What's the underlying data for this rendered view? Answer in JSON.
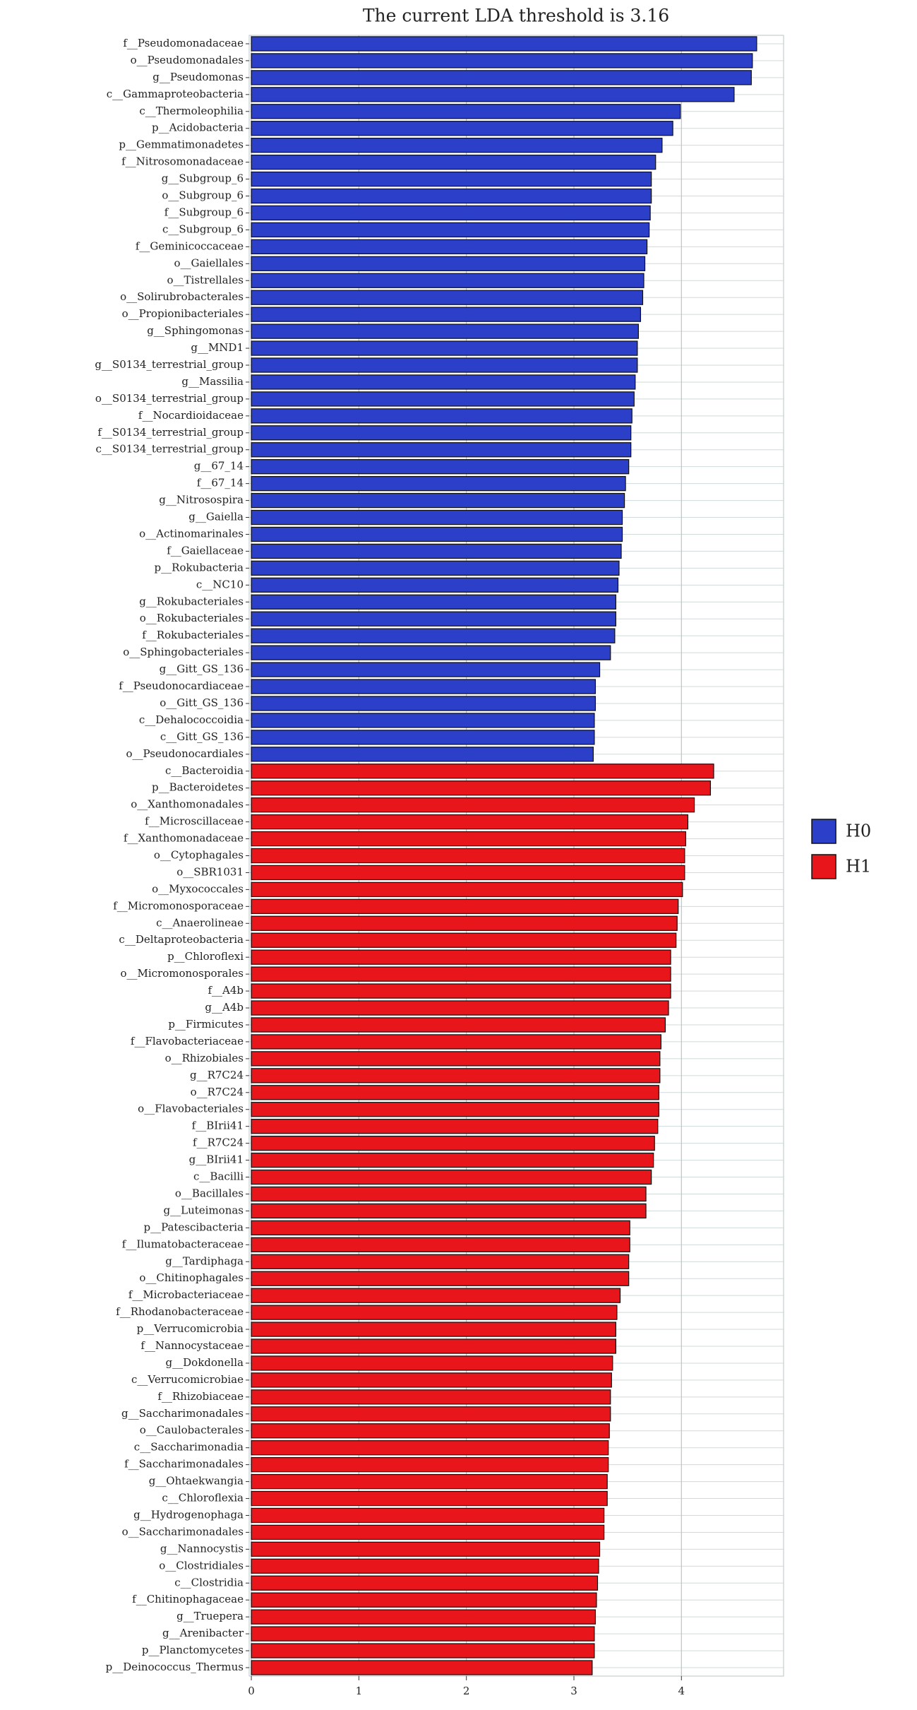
{
  "chart_data": {
    "type": "barh",
    "title": "The current LDA threshold is 3.16",
    "categories": [
      "f__Pseudomonadaceae",
      "o__Pseudomonadales",
      "g__Pseudomonas",
      "c__Gammaproteobacteria",
      "c__Thermoleophilia",
      "p__Acidobacteria",
      "p__Gemmatimonadetes",
      "f__Nitrosomonadaceae",
      "g__Subgroup_6",
      "o__Subgroup_6",
      "f__Subgroup_6",
      "c__Subgroup_6",
      "f__Geminicoccaceae",
      "o__Gaiellales",
      "o__Tistrellales",
      "o__Solirubrobacterales",
      "o__Propionibacteriales",
      "g__Sphingomonas",
      "g__MND1",
      "g__S0134_terrestrial_group",
      "g__Massilia",
      "o__S0134_terrestrial_group",
      "f__Nocardioidaceae",
      "f__S0134_terrestrial_group",
      "c__S0134_terrestrial_group",
      "g__67_14",
      "f__67_14",
      "g__Nitrosospira",
      "g__Gaiella",
      "o__Actinomarinales",
      "f__Gaiellaceae",
      "p__Rokubacteria",
      "c__NC10",
      "g__Rokubacteriales",
      "o__Rokubacteriales",
      "f__Rokubacteriales",
      "o__Sphingobacteriales",
      "g__Gitt_GS_136",
      "f__Pseudonocardiaceae",
      "o__Gitt_GS_136",
      "c__Dehalococcoidia",
      "c__Gitt_GS_136",
      "o__Pseudonocardiales",
      "c__Bacteroidia",
      "p__Bacteroidetes",
      "o__Xanthomonadales",
      "f__Microscillaceae",
      "f__Xanthomonadaceae",
      "o__Cytophagales",
      "o__SBR1031",
      "o__Myxococcales",
      "f__Micromonosporaceae",
      "c__Anaerolineae",
      "c__Deltaproteobacteria",
      "p__Chloroflexi",
      "o__Micromonosporales",
      "f__A4b",
      "g__A4b",
      "p__Firmicutes",
      "f__Flavobacteriaceae",
      "o__Rhizobiales",
      "g__R7C24",
      "o__R7C24",
      "o__Flavobacteriales",
      "f__BIrii41",
      "f__R7C24",
      "g__BIrii41",
      "c__Bacilli",
      "o__Bacillales",
      "g__Luteimonas",
      "p__Patescibacteria",
      "f__Ilumatobacteraceae",
      "g__Tardiphaga",
      "o__Chitinophagales",
      "f__Microbacteriaceae",
      "f__Rhodanobacteraceae",
      "p__Verrucomicrobia",
      "f__Nannocystaceae",
      "g__Dokdonella",
      "c__Verrucomicrobiae",
      "f__Rhizobiaceae",
      "g__Saccharimonadales",
      "o__Caulobacterales",
      "c__Saccharimonadia",
      "f__Saccharimonadales",
      "g__Ohtaekwangia",
      "c__Chloroflexia",
      "g__Hydrogenophaga",
      "o__Saccharimonadales",
      "g__Nannocystis",
      "o__Clostridiales",
      "c__Clostridia",
      "f__Chitinophagaceae",
      "g__Truepera",
      "g__Arenibacter",
      "p__Planctomycetes",
      "p__Deinococcus_Thermus"
    ],
    "series": [
      {
        "name": "H0",
        "color": "#2b3fc9",
        "values": [
          4.7,
          4.66,
          4.65,
          4.49,
          3.99,
          3.92,
          3.82,
          3.76,
          3.72,
          3.72,
          3.71,
          3.7,
          3.68,
          3.66,
          3.65,
          3.64,
          3.62,
          3.6,
          3.59,
          3.59,
          3.57,
          3.56,
          3.54,
          3.53,
          3.53,
          3.51,
          3.48,
          3.47,
          3.45,
          3.45,
          3.44,
          3.42,
          3.41,
          3.39,
          3.39,
          3.38,
          3.34,
          3.24,
          3.2,
          3.2,
          3.19,
          3.19,
          3.18,
          null,
          null,
          null,
          null,
          null,
          null,
          null,
          null,
          null,
          null,
          null,
          null,
          null,
          null,
          null,
          null,
          null,
          null,
          null,
          null,
          null,
          null,
          null,
          null,
          null,
          null,
          null,
          null,
          null,
          null,
          null,
          null,
          null,
          null,
          null,
          null,
          null,
          null,
          null,
          null,
          null,
          null,
          null,
          null,
          null,
          null,
          null,
          null,
          null,
          null,
          null,
          null,
          null,
          null
        ]
      },
      {
        "name": "H1",
        "color": "#e8161b",
        "values": [
          null,
          null,
          null,
          null,
          null,
          null,
          null,
          null,
          null,
          null,
          null,
          null,
          null,
          null,
          null,
          null,
          null,
          null,
          null,
          null,
          null,
          null,
          null,
          null,
          null,
          null,
          null,
          null,
          null,
          null,
          null,
          null,
          null,
          null,
          null,
          null,
          null,
          null,
          null,
          null,
          null,
          null,
          null,
          4.3,
          4.27,
          4.12,
          4.06,
          4.04,
          4.03,
          4.03,
          4.01,
          3.97,
          3.96,
          3.95,
          3.9,
          3.9,
          3.9,
          3.88,
          3.85,
          3.81,
          3.8,
          3.8,
          3.79,
          3.79,
          3.78,
          3.75,
          3.74,
          3.72,
          3.67,
          3.67,
          3.52,
          3.52,
          3.51,
          3.51,
          3.43,
          3.4,
          3.39,
          3.39,
          3.36,
          3.35,
          3.34,
          3.34,
          3.33,
          3.32,
          3.32,
          3.31,
          3.31,
          3.28,
          3.28,
          3.24,
          3.23,
          3.22,
          3.21,
          3.2,
          3.19,
          3.19,
          3.17
        ]
      }
    ],
    "xlim": [
      -0.02,
      4.95
    ],
    "xticks": [
      0,
      1,
      2,
      3,
      4
    ],
    "grid": true,
    "legend": "right"
  }
}
